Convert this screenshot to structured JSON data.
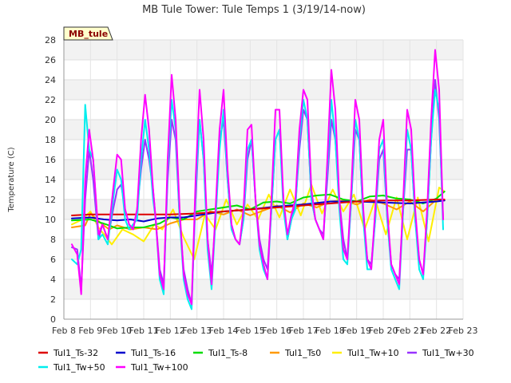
{
  "chart_data": {
    "type": "line",
    "title": "MB Tule Tower: Tule Temps 1 (3/19/14-now)",
    "badge": "MB_tule",
    "ylabel": "Temperature (C)",
    "xlabel": "",
    "ylim": [
      0,
      28
    ],
    "yticks": [
      0,
      2,
      4,
      6,
      8,
      10,
      12,
      14,
      16,
      18,
      20,
      22,
      24,
      26,
      28
    ],
    "xlim": [
      8,
      23
    ],
    "xticks": [
      {
        "x": 8,
        "label": "Feb 8"
      },
      {
        "x": 9,
        "label": "Feb 9"
      },
      {
        "x": 10,
        "label": "Feb 10"
      },
      {
        "x": 11,
        "label": "Feb 11"
      },
      {
        "x": 12,
        "label": "Feb 12"
      },
      {
        "x": 13,
        "label": "Feb 13"
      },
      {
        "x": 14,
        "label": "Feb 14"
      },
      {
        "x": 15,
        "label": "Feb 15"
      },
      {
        "x": 16,
        "label": "Feb 16"
      },
      {
        "x": 17,
        "label": "Feb 17"
      },
      {
        "x": 18,
        "label": "Feb 18"
      },
      {
        "x": 19,
        "label": "Feb 19"
      },
      {
        "x": 20,
        "label": "Feb 20"
      },
      {
        "x": 21,
        "label": "Feb 21"
      },
      {
        "x": 22,
        "label": "Feb 22"
      },
      {
        "x": 23,
        "label": "Feb 23"
      }
    ],
    "grid": "horizontal bands",
    "legend_position": "bottom",
    "series": [
      {
        "name": "Tul1_Ts-32",
        "color": "#dd0000",
        "x": [
          8.3,
          9,
          10,
          11,
          12,
          13,
          14,
          15,
          16,
          17,
          18,
          19,
          20,
          21,
          22,
          22.3
        ],
        "y": [
          10.4,
          10.5,
          10.5,
          10.5,
          10.5,
          10.6,
          10.8,
          11.0,
          11.2,
          11.4,
          11.6,
          11.8,
          11.9,
          11.9,
          12.0,
          12.0
        ]
      },
      {
        "name": "Tul1_Ts-16",
        "color": "#0000cc",
        "x": [
          8.3,
          9,
          9.5,
          10,
          10.5,
          11,
          11.5,
          12,
          12.5,
          13,
          14,
          15,
          16,
          17,
          18,
          19,
          20,
          21,
          22,
          22.3
        ],
        "y": [
          10.1,
          10.2,
          10.0,
          9.9,
          10.0,
          9.8,
          10.1,
          10.2,
          10.2,
          10.4,
          10.8,
          11.0,
          11.3,
          11.5,
          11.8,
          11.8,
          11.7,
          11.6,
          11.8,
          11.9
        ]
      },
      {
        "name": "Tul1_Ts-8",
        "color": "#00dd00",
        "x": [
          8.3,
          9,
          9.6,
          10,
          10.5,
          11,
          11.6,
          12,
          12.5,
          13,
          13.5,
          14,
          14.5,
          15,
          15.5,
          16,
          16.5,
          17,
          17.5,
          18,
          18.5,
          19,
          19.5,
          20,
          20.5,
          21,
          21.5,
          22,
          22.3
        ],
        "y": [
          9.9,
          10.0,
          9.5,
          9.1,
          9.2,
          9.2,
          9.6,
          10.2,
          10.0,
          10.8,
          11.0,
          11.2,
          11.4,
          11.0,
          11.7,
          11.8,
          11.6,
          12.2,
          12.4,
          12.5,
          12.0,
          11.8,
          12.3,
          12.4,
          12.1,
          12.0,
          11.6,
          12.1,
          12.8
        ]
      },
      {
        "name": "Tul1_Ts0",
        "color": "#ff9900",
        "x": [
          8.3,
          8.8,
          9,
          9.4,
          9.7,
          10,
          10.5,
          11,
          11.5,
          12,
          12.5,
          13,
          13.5,
          14,
          14.5,
          15,
          15.5,
          16,
          16.5,
          17,
          17.5,
          18,
          18.5,
          19,
          19.5,
          20,
          20.5,
          21,
          21.5,
          22,
          22.3
        ],
        "y": [
          9.2,
          9.4,
          10.6,
          9.6,
          9.0,
          9.4,
          9.0,
          9.2,
          9.0,
          9.6,
          10.0,
          10.0,
          10.8,
          10.5,
          11.0,
          10.4,
          10.9,
          11.4,
          10.7,
          11.6,
          11.2,
          11.8,
          11.9,
          11.5,
          12.0,
          11.6,
          11.0,
          11.8,
          10.8,
          12.0,
          11.9
        ]
      },
      {
        "name": "Tul1_Tw+10",
        "color": "#ffee00",
        "x": [
          8.3,
          8.7,
          9.0,
          9.3,
          9.6,
          9.8,
          10.2,
          10.6,
          11.0,
          11.4,
          11.7,
          12.1,
          12.5,
          12.9,
          13.3,
          13.7,
          14.1,
          14.5,
          14.9,
          15.3,
          15.7,
          16.1,
          16.5,
          16.9,
          17.3,
          17.7,
          18.1,
          18.5,
          18.9,
          19.3,
          19.7,
          20.1,
          20.5,
          20.9,
          21.3,
          21.7,
          22.1,
          22.3
        ],
        "y": [
          9.5,
          10.0,
          10.8,
          9.2,
          8.2,
          7.5,
          9.0,
          8.5,
          7.8,
          9.5,
          9.0,
          11.0,
          8.2,
          6.0,
          10.5,
          9.0,
          12.0,
          9.5,
          11.5,
          10.0,
          12.5,
          10.2,
          13.0,
          10.4,
          13.5,
          10.6,
          13.0,
          10.8,
          12.5,
          9.0,
          12.0,
          8.5,
          12.2,
          8.0,
          12.2,
          7.8,
          13.2,
          12.8
        ]
      },
      {
        "name": "Tul1_Tw+30",
        "color": "#9933ff",
        "x": [
          8.3,
          8.5,
          8.65,
          8.8,
          8.95,
          9.1,
          9.3,
          9.45,
          9.65,
          9.85,
          10.0,
          10.15,
          10.3,
          10.45,
          10.6,
          10.75,
          10.9,
          11.05,
          11.2,
          11.35,
          11.45,
          11.6,
          11.75,
          11.9,
          12.05,
          12.2,
          12.35,
          12.5,
          12.65,
          12.8,
          12.95,
          13.1,
          13.25,
          13.4,
          13.55,
          13.7,
          13.85,
          14.0,
          14.15,
          14.3,
          14.45,
          14.6,
          14.75,
          14.9,
          15.05,
          15.2,
          15.35,
          15.5,
          15.65,
          15.8,
          15.95,
          16.1,
          16.25,
          16.4,
          16.55,
          16.7,
          16.85,
          17.0,
          17.15,
          17.3,
          17.45,
          17.6,
          17.75,
          17.9,
          18.05,
          18.2,
          18.35,
          18.5,
          18.65,
          18.8,
          18.95,
          19.1,
          19.25,
          19.4,
          19.55,
          19.7,
          19.85,
          20.0,
          20.15,
          20.3,
          20.45,
          20.6,
          20.75,
          20.9,
          21.05,
          21.2,
          21.35,
          21.5,
          21.65,
          21.8,
          21.95,
          22.1,
          22.25
        ],
        "y": [
          7.2,
          7.0,
          3.0,
          12.0,
          17.0,
          14.0,
          8.0,
          9.5,
          8.0,
          11.0,
          13.0,
          13.5,
          11.0,
          9.5,
          9.0,
          11.0,
          15.0,
          18.0,
          16.0,
          13.0,
          10.0,
          5.0,
          3.5,
          14.0,
          20.0,
          18.0,
          10.0,
          5.0,
          3.0,
          1.5,
          12.0,
          20.0,
          16.0,
          8.0,
          4.5,
          10.0,
          18.0,
          20.0,
          14.0,
          9.0,
          8.0,
          7.5,
          10.0,
          16.0,
          18.0,
          12.0,
          8.0,
          6.0,
          5.0,
          11.0,
          18.0,
          19.0,
          12.0,
          8.0,
          10.0,
          11.5,
          17.0,
          21.0,
          20.0,
          12.0,
          10.0,
          9.0,
          8.5,
          14.0,
          20.0,
          18.0,
          12.0,
          8.0,
          6.0,
          12.0,
          19.0,
          18.0,
          10.0,
          6.0,
          5.5,
          10.0,
          16.0,
          17.0,
          10.0,
          5.5,
          4.5,
          4.0,
          11.0,
          17.0,
          17.0,
          10.0,
          6.0,
          4.5,
          10.0,
          18.0,
          24.0,
          20.0,
          10.0
        ]
      },
      {
        "name": "Tul1_Tw+50",
        "color": "#00eeee",
        "x": [
          8.3,
          8.5,
          8.65,
          8.8,
          8.95,
          9.1,
          9.3,
          9.45,
          9.65,
          9.85,
          10.0,
          10.15,
          10.3,
          10.45,
          10.6,
          10.75,
          10.9,
          11.05,
          11.2,
          11.35,
          11.45,
          11.6,
          11.75,
          11.9,
          12.05,
          12.2,
          12.35,
          12.5,
          12.65,
          12.8,
          12.95,
          13.1,
          13.25,
          13.4,
          13.55,
          13.7,
          13.85,
          14.0,
          14.15,
          14.3,
          14.45,
          14.6,
          14.75,
          14.9,
          15.05,
          15.2,
          15.35,
          15.5,
          15.65,
          15.8,
          15.95,
          16.1,
          16.25,
          16.4,
          16.55,
          16.7,
          16.85,
          17.0,
          17.15,
          17.3,
          17.45,
          17.6,
          17.75,
          17.9,
          18.05,
          18.2,
          18.35,
          18.5,
          18.65,
          18.8,
          18.95,
          19.1,
          19.25,
          19.4,
          19.55,
          19.7,
          19.85,
          20.0,
          20.15,
          20.3,
          20.45,
          20.6,
          20.75,
          20.9,
          21.05,
          21.2,
          21.35,
          21.5,
          21.65,
          21.8,
          21.95,
          22.1,
          22.25
        ],
        "y": [
          6.0,
          5.5,
          7.0,
          21.5,
          17.0,
          16.0,
          8.0,
          8.5,
          7.5,
          12.0,
          15.0,
          14.0,
          10.0,
          9.0,
          9.5,
          10.0,
          16.0,
          20.0,
          17.0,
          12.0,
          10.0,
          4.0,
          2.5,
          15.0,
          22.0,
          19.0,
          10.0,
          4.0,
          2.0,
          1.0,
          13.0,
          20.0,
          16.0,
          7.0,
          3.0,
          10.0,
          17.0,
          21.0,
          14.0,
          9.0,
          8.0,
          7.5,
          10.0,
          17.0,
          18.0,
          12.0,
          7.0,
          5.0,
          4.0,
          11.0,
          18.0,
          19.0,
          11.0,
          8.0,
          10.0,
          11.0,
          18.0,
          22.0,
          20.0,
          12.0,
          10.0,
          9.0,
          8.0,
          15.0,
          22.0,
          18.0,
          11.0,
          6.0,
          5.5,
          12.0,
          20.0,
          18.0,
          10.0,
          5.0,
          5.0,
          10.0,
          17.0,
          18.0,
          10.0,
          5.0,
          4.0,
          3.0,
          11.0,
          19.0,
          17.0,
          10.0,
          5.0,
          4.0,
          10.0,
          18.0,
          23.0,
          21.0,
          9.0
        ]
      },
      {
        "name": "Tul1_Tw+100",
        "color": "#ff00ff",
        "x": [
          8.3,
          8.5,
          8.65,
          8.8,
          8.95,
          9.1,
          9.3,
          9.45,
          9.65,
          9.85,
          10.0,
          10.15,
          10.3,
          10.45,
          10.6,
          10.75,
          10.9,
          11.05,
          11.2,
          11.35,
          11.45,
          11.6,
          11.75,
          11.9,
          12.05,
          12.2,
          12.35,
          12.5,
          12.65,
          12.8,
          12.95,
          13.1,
          13.25,
          13.4,
          13.55,
          13.7,
          13.85,
          14.0,
          14.15,
          14.3,
          14.45,
          14.6,
          14.75,
          14.9,
          15.05,
          15.2,
          15.35,
          15.5,
          15.65,
          15.8,
          15.95,
          16.1,
          16.25,
          16.4,
          16.55,
          16.7,
          16.85,
          17.0,
          17.15,
          17.3,
          17.45,
          17.6,
          17.75,
          17.9,
          18.05,
          18.2,
          18.35,
          18.5,
          18.65,
          18.8,
          18.95,
          19.1,
          19.25,
          19.4,
          19.55,
          19.7,
          19.85,
          20.0,
          20.15,
          20.3,
          20.45,
          20.6,
          20.75,
          20.9,
          21.05,
          21.2,
          21.35,
          21.5,
          21.65,
          21.8,
          21.95,
          22.1,
          22.25
        ],
        "y": [
          7.5,
          6.5,
          2.5,
          14.0,
          19.0,
          16.0,
          8.5,
          9.5,
          8.0,
          13.0,
          16.5,
          16.0,
          11.0,
          9.5,
          9.0,
          11.0,
          18.0,
          22.5,
          19.0,
          13.0,
          10.0,
          4.5,
          3.0,
          16.0,
          24.5,
          20.0,
          11.0,
          4.5,
          2.5,
          1.5,
          14.0,
          23.0,
          18.0,
          8.0,
          3.5,
          11.0,
          19.0,
          23.0,
          15.0,
          9.5,
          8.0,
          7.5,
          11.0,
          19.0,
          19.5,
          12.0,
          7.5,
          5.5,
          4.0,
          12.0,
          21.0,
          21.0,
          12.0,
          8.5,
          10.5,
          12.0,
          19.0,
          23.0,
          22.0,
          13.0,
          10.0,
          9.0,
          8.0,
          16.0,
          25.0,
          21.0,
          12.0,
          7.0,
          6.0,
          13.0,
          22.0,
          20.0,
          11.0,
          6.0,
          5.0,
          11.0,
          18.0,
          20.0,
          11.0,
          5.5,
          4.5,
          3.5,
          12.0,
          21.0,
          19.0,
          11.0,
          6.0,
          4.5,
          11.0,
          20.0,
          27.0,
          23.0,
          10.0
        ]
      }
    ]
  }
}
